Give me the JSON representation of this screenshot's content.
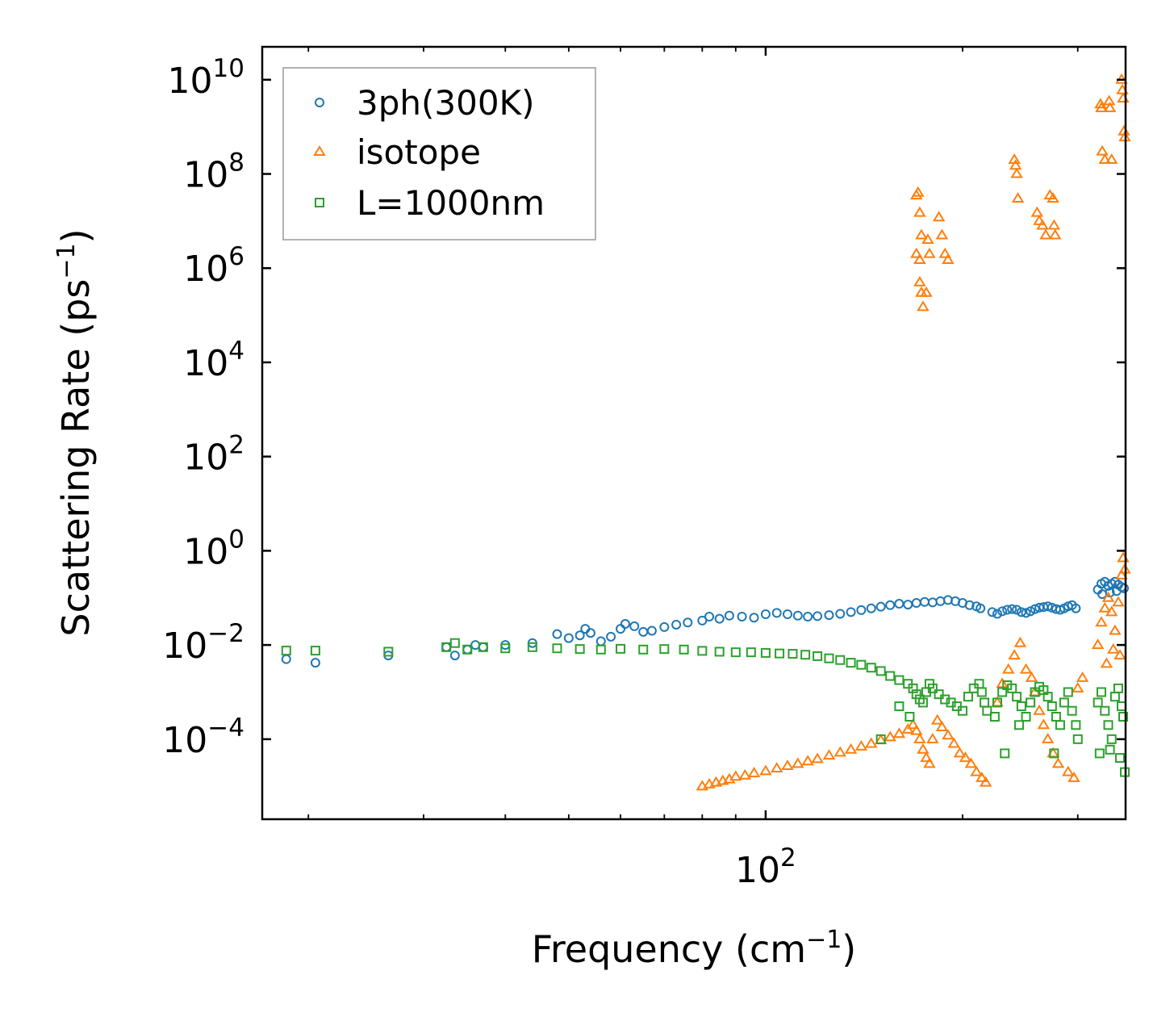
{
  "chart_data": {
    "type": "scatter",
    "x_scale": "log",
    "y_scale": "log",
    "xlim": [
      17,
      355
    ],
    "ylim": [
      2e-06,
      50000000000.0
    ],
    "xlabel": "Frequency (cm",
    "xlabel_sup": "−1",
    "xlabel_end": ")",
    "ylabel": "Scattering Rate (ps",
    "ylabel_sup": "−1",
    "ylabel_end": ")",
    "x_ticks": [
      {
        "value": 100,
        "base": "10",
        "exp": "2"
      }
    ],
    "y_ticks": [
      {
        "value": 10000000000.0,
        "base": "10",
        "exp": "10"
      },
      {
        "value": 100000000.0,
        "base": "10",
        "exp": "8"
      },
      {
        "value": 1000000.0,
        "base": "10",
        "exp": "6"
      },
      {
        "value": 10000.0,
        "base": "10",
        "exp": "4"
      },
      {
        "value": 100.0,
        "base": "10",
        "exp": "2"
      },
      {
        "value": 1,
        "base": "10",
        "exp": "0"
      },
      {
        "value": 0.01,
        "base": "10",
        "exp": "−2"
      },
      {
        "value": 0.0001,
        "base": "10",
        "exp": "−4"
      }
    ],
    "x_minor_ticks": [
      20,
      30,
      40,
      50,
      60,
      70,
      80,
      90,
      200,
      300
    ],
    "legend": {
      "position": "top-left"
    },
    "series": [
      {
        "name": "3ph(300K)",
        "marker": "circle",
        "color": "#1f77b4",
        "points": [
          [
            18.5,
            0.005
          ],
          [
            20.5,
            0.0042
          ],
          [
            26.5,
            0.006
          ],
          [
            32.5,
            0.009
          ],
          [
            33.5,
            0.006
          ],
          [
            35,
            0.008
          ],
          [
            36,
            0.01
          ],
          [
            37,
            0.009
          ],
          [
            40,
            0.01
          ],
          [
            44,
            0.011
          ],
          [
            48,
            0.017
          ],
          [
            50,
            0.014
          ],
          [
            52,
            0.016
          ],
          [
            53,
            0.022
          ],
          [
            54,
            0.018
          ],
          [
            56,
            0.012
          ],
          [
            58,
            0.015
          ],
          [
            60,
            0.022
          ],
          [
            61,
            0.028
          ],
          [
            63,
            0.025
          ],
          [
            65,
            0.019
          ],
          [
            67,
            0.02
          ],
          [
            70,
            0.024
          ],
          [
            73,
            0.027
          ],
          [
            76,
            0.03
          ],
          [
            80,
            0.033
          ],
          [
            82,
            0.04
          ],
          [
            85,
            0.036
          ],
          [
            88,
            0.042
          ],
          [
            92,
            0.04
          ],
          [
            96,
            0.038
          ],
          [
            100,
            0.045
          ],
          [
            104,
            0.048
          ],
          [
            108,
            0.045
          ],
          [
            112,
            0.042
          ],
          [
            116,
            0.04
          ],
          [
            120,
            0.041
          ],
          [
            125,
            0.043
          ],
          [
            130,
            0.046
          ],
          [
            135,
            0.05
          ],
          [
            140,
            0.055
          ],
          [
            145,
            0.06
          ],
          [
            150,
            0.065
          ],
          [
            155,
            0.07
          ],
          [
            160,
            0.075
          ],
          [
            165,
            0.072
          ],
          [
            170,
            0.078
          ],
          [
            175,
            0.082
          ],
          [
            180,
            0.08
          ],
          [
            185,
            0.085
          ],
          [
            190,
            0.09
          ],
          [
            195,
            0.085
          ],
          [
            200,
            0.078
          ],
          [
            205,
            0.07
          ],
          [
            210,
            0.066
          ],
          [
            213,
            0.06
          ],
          [
            222,
            0.05
          ],
          [
            226,
            0.046
          ],
          [
            230,
            0.052
          ],
          [
            234,
            0.056
          ],
          [
            238,
            0.058
          ],
          [
            242,
            0.056
          ],
          [
            246,
            0.05
          ],
          [
            250,
            0.048
          ],
          [
            254,
            0.052
          ],
          [
            258,
            0.058
          ],
          [
            262,
            0.062
          ],
          [
            266,
            0.064
          ],
          [
            270,
            0.066
          ],
          [
            274,
            0.062
          ],
          [
            278,
            0.058
          ],
          [
            282,
            0.056
          ],
          [
            286,
            0.06
          ],
          [
            290,
            0.066
          ],
          [
            294,
            0.07
          ],
          [
            298,
            0.06
          ],
          [
            322,
            0.15
          ],
          [
            326,
            0.2
          ],
          [
            330,
            0.22
          ],
          [
            334,
            0.18
          ],
          [
            338,
            0.2
          ],
          [
            342,
            0.22
          ],
          [
            346,
            0.19
          ],
          [
            350,
            0.17
          ],
          [
            353,
            0.16
          ],
          [
            327,
            0.12
          ],
          [
            336,
            0.13
          ],
          [
            344,
            0.14
          ]
        ]
      },
      {
        "name": "isotope",
        "marker": "triangle",
        "color": "#ff7f0e",
        "points": [
          [
            80,
            1e-05
          ],
          [
            82,
            1.1e-05
          ],
          [
            84,
            1.2e-05
          ],
          [
            86,
            1.3e-05
          ],
          [
            88,
            1.4e-05
          ],
          [
            90,
            1.6e-05
          ],
          [
            93,
            1.7e-05
          ],
          [
            96,
            1.9e-05
          ],
          [
            100,
            2.1e-05
          ],
          [
            104,
            2.4e-05
          ],
          [
            108,
            2.7e-05
          ],
          [
            112,
            3e-05
          ],
          [
            116,
            3.4e-05
          ],
          [
            120,
            3.8e-05
          ],
          [
            125,
            4.5e-05
          ],
          [
            130,
            5.2e-05
          ],
          [
            135,
            6e-05
          ],
          [
            140,
            7e-05
          ],
          [
            145,
            8e-05
          ],
          [
            150,
            9.5e-05
          ],
          [
            155,
            0.00011
          ],
          [
            160,
            0.00013
          ],
          [
            165,
            0.00016
          ],
          [
            168,
            0.0002
          ],
          [
            170,
            0.00015
          ],
          [
            172,
            0.0001
          ],
          [
            174,
            6e-05
          ],
          [
            176,
            4e-05
          ],
          [
            178,
            3e-05
          ],
          [
            180,
            0.0001
          ],
          [
            183,
            0.00025
          ],
          [
            186,
            0.00018
          ],
          [
            190,
            0.00012
          ],
          [
            194,
            8e-05
          ],
          [
            198,
            5e-05
          ],
          [
            202,
            4e-05
          ],
          [
            206,
            3e-05
          ],
          [
            210,
            2e-05
          ],
          [
            214,
            1.5e-05
          ],
          [
            217,
            1.2e-05
          ],
          [
            226,
            0.0006
          ],
          [
            230,
            0.0015
          ],
          [
            235,
            0.003
          ],
          [
            240,
            0.006
          ],
          [
            245,
            0.011
          ],
          [
            250,
            0.003
          ],
          [
            255,
            0.002
          ],
          [
            258,
            0.001
          ],
          [
            262,
            0.0004
          ],
          [
            266,
            0.0002
          ],
          [
            270,
            0.0001
          ],
          [
            275,
            5e-05
          ],
          [
            280,
            3e-05
          ],
          [
            290,
            2e-05
          ],
          [
            296,
            1.5e-05
          ],
          [
            300,
            0.0012
          ],
          [
            305,
            0.002
          ],
          [
            322,
            0.01
          ],
          [
            326,
            0.03
          ],
          [
            330,
            0.06
          ],
          [
            334,
            0.1
          ],
          [
            338,
            0.05
          ],
          [
            342,
            0.02
          ],
          [
            346,
            0.08
          ],
          [
            350,
            0.3
          ],
          [
            352,
            0.7
          ],
          [
            354,
            0.4
          ],
          [
            332,
            0.004
          ],
          [
            340,
            0.008
          ],
          [
            348,
            0.006
          ],
          [
            170,
            35000000.0
          ],
          [
            171,
            40000000.0
          ],
          [
            172,
            15000000.0
          ],
          [
            173,
            5000000.0
          ],
          [
            170,
            2000000.0
          ],
          [
            172,
            500000.0
          ],
          [
            173,
            300000.0
          ],
          [
            174,
            150000.0
          ],
          [
            176,
            300000.0
          ],
          [
            178,
            2000000.0
          ],
          [
            177,
            4000000.0
          ],
          [
            172,
            1500000.0
          ],
          [
            184,
            12000000.0
          ],
          [
            186,
            5000000.0
          ],
          [
            188,
            2000000.0
          ],
          [
            190,
            1500000.0
          ],
          [
            240,
            200000000.0
          ],
          [
            241,
            150000000.0
          ],
          [
            242,
            100000000.0
          ],
          [
            243,
            30000000.0
          ],
          [
            260,
            15000000.0
          ],
          [
            262,
            10000000.0
          ],
          [
            265,
            8000000.0
          ],
          [
            268,
            5000000.0
          ],
          [
            272,
            35000000.0
          ],
          [
            275,
            30000000.0
          ],
          [
            276,
            8000000.0
          ],
          [
            277,
            5000000.0
          ],
          [
            325,
            3000000000.0
          ],
          [
            326,
            2500000000.0
          ],
          [
            327,
            300000000.0
          ],
          [
            330,
            200000000.0
          ],
          [
            335,
            3500000000.0
          ],
          [
            336,
            2500000000.0
          ],
          [
            338,
            200000000.0
          ],
          [
            350,
            10000000000.0
          ],
          [
            351,
            6000000000.0
          ],
          [
            352,
            4000000000.0
          ],
          [
            353,
            800000000.0
          ],
          [
            354,
            600000000.0
          ]
        ]
      },
      {
        "name": "L=1000nm",
        "marker": "square",
        "color": "#2ca02c",
        "points": [
          [
            18.5,
            0.0076
          ],
          [
            20.5,
            0.0076
          ],
          [
            26.5,
            0.0072
          ],
          [
            32.5,
            0.009
          ],
          [
            33.5,
            0.011
          ],
          [
            35,
            0.008
          ],
          [
            37,
            0.009
          ],
          [
            40,
            0.0085
          ],
          [
            44,
            0.009
          ],
          [
            48,
            0.0085
          ],
          [
            52,
            0.0082
          ],
          [
            56,
            0.008
          ],
          [
            60,
            0.0083
          ],
          [
            65,
            0.008
          ],
          [
            70,
            0.0082
          ],
          [
            75,
            0.008
          ],
          [
            80,
            0.0075
          ],
          [
            85,
            0.0072
          ],
          [
            90,
            0.007
          ],
          [
            95,
            0.007
          ],
          [
            100,
            0.0068
          ],
          [
            105,
            0.0066
          ],
          [
            110,
            0.0065
          ],
          [
            115,
            0.0062
          ],
          [
            120,
            0.0058
          ],
          [
            125,
            0.0052
          ],
          [
            130,
            0.0048
          ],
          [
            135,
            0.0042
          ],
          [
            140,
            0.0038
          ],
          [
            145,
            0.0033
          ],
          [
            150,
            0.0028
          ],
          [
            155,
            0.0022
          ],
          [
            160,
            0.0018
          ],
          [
            165,
            0.0015
          ],
          [
            168,
            0.0012
          ],
          [
            170,
            0.0009
          ],
          [
            172,
            0.0007
          ],
          [
            174,
            0.0006
          ],
          [
            176,
            0.001
          ],
          [
            178,
            0.0015
          ],
          [
            180,
            0.0012
          ],
          [
            184,
            0.0009
          ],
          [
            188,
            0.0007
          ],
          [
            192,
            0.0006
          ],
          [
            196,
            0.0005
          ],
          [
            200,
            0.0004
          ],
          [
            204,
            0.0008
          ],
          [
            208,
            0.0012
          ],
          [
            212,
            0.0015
          ],
          [
            214,
            0.001
          ],
          [
            216,
            0.0006
          ],
          [
            218,
            0.0004
          ],
          [
            224,
            0.0003
          ],
          [
            226,
            0.0006
          ],
          [
            230,
            0.001
          ],
          [
            234,
            0.0014
          ],
          [
            238,
            0.0012
          ],
          [
            242,
            0.0008
          ],
          [
            246,
            0.0005
          ],
          [
            250,
            0.0003
          ],
          [
            254,
            0.0006
          ],
          [
            258,
            0.001
          ],
          [
            262,
            0.0013
          ],
          [
            266,
            0.0011
          ],
          [
            270,
            0.0008
          ],
          [
            274,
            0.0005
          ],
          [
            278,
            0.0003
          ],
          [
            282,
            0.0002
          ],
          [
            286,
            0.0006
          ],
          [
            290,
            0.001
          ],
          [
            294,
            0.0004
          ],
          [
            298,
            0.0002
          ],
          [
            300,
            0.0001
          ],
          [
            322,
            0.0006
          ],
          [
            326,
            0.001
          ],
          [
            330,
            0.0004
          ],
          [
            334,
            0.0002
          ],
          [
            338,
            0.0001
          ],
          [
            342,
            0.0008
          ],
          [
            346,
            0.0012
          ],
          [
            350,
            0.0005
          ],
          [
            352,
            0.0003
          ],
          [
            354,
            2e-05
          ],
          [
            324,
            5e-05
          ],
          [
            336,
            6e-05
          ],
          [
            348,
            4e-05
          ],
          [
            160,
            0.0005
          ],
          [
            150,
            0.0001
          ],
          [
            166,
            0.0003
          ],
          [
            232,
            5e-05
          ],
          [
            244,
            0.0002
          ],
          [
            276,
            5e-05
          ]
        ]
      }
    ]
  }
}
